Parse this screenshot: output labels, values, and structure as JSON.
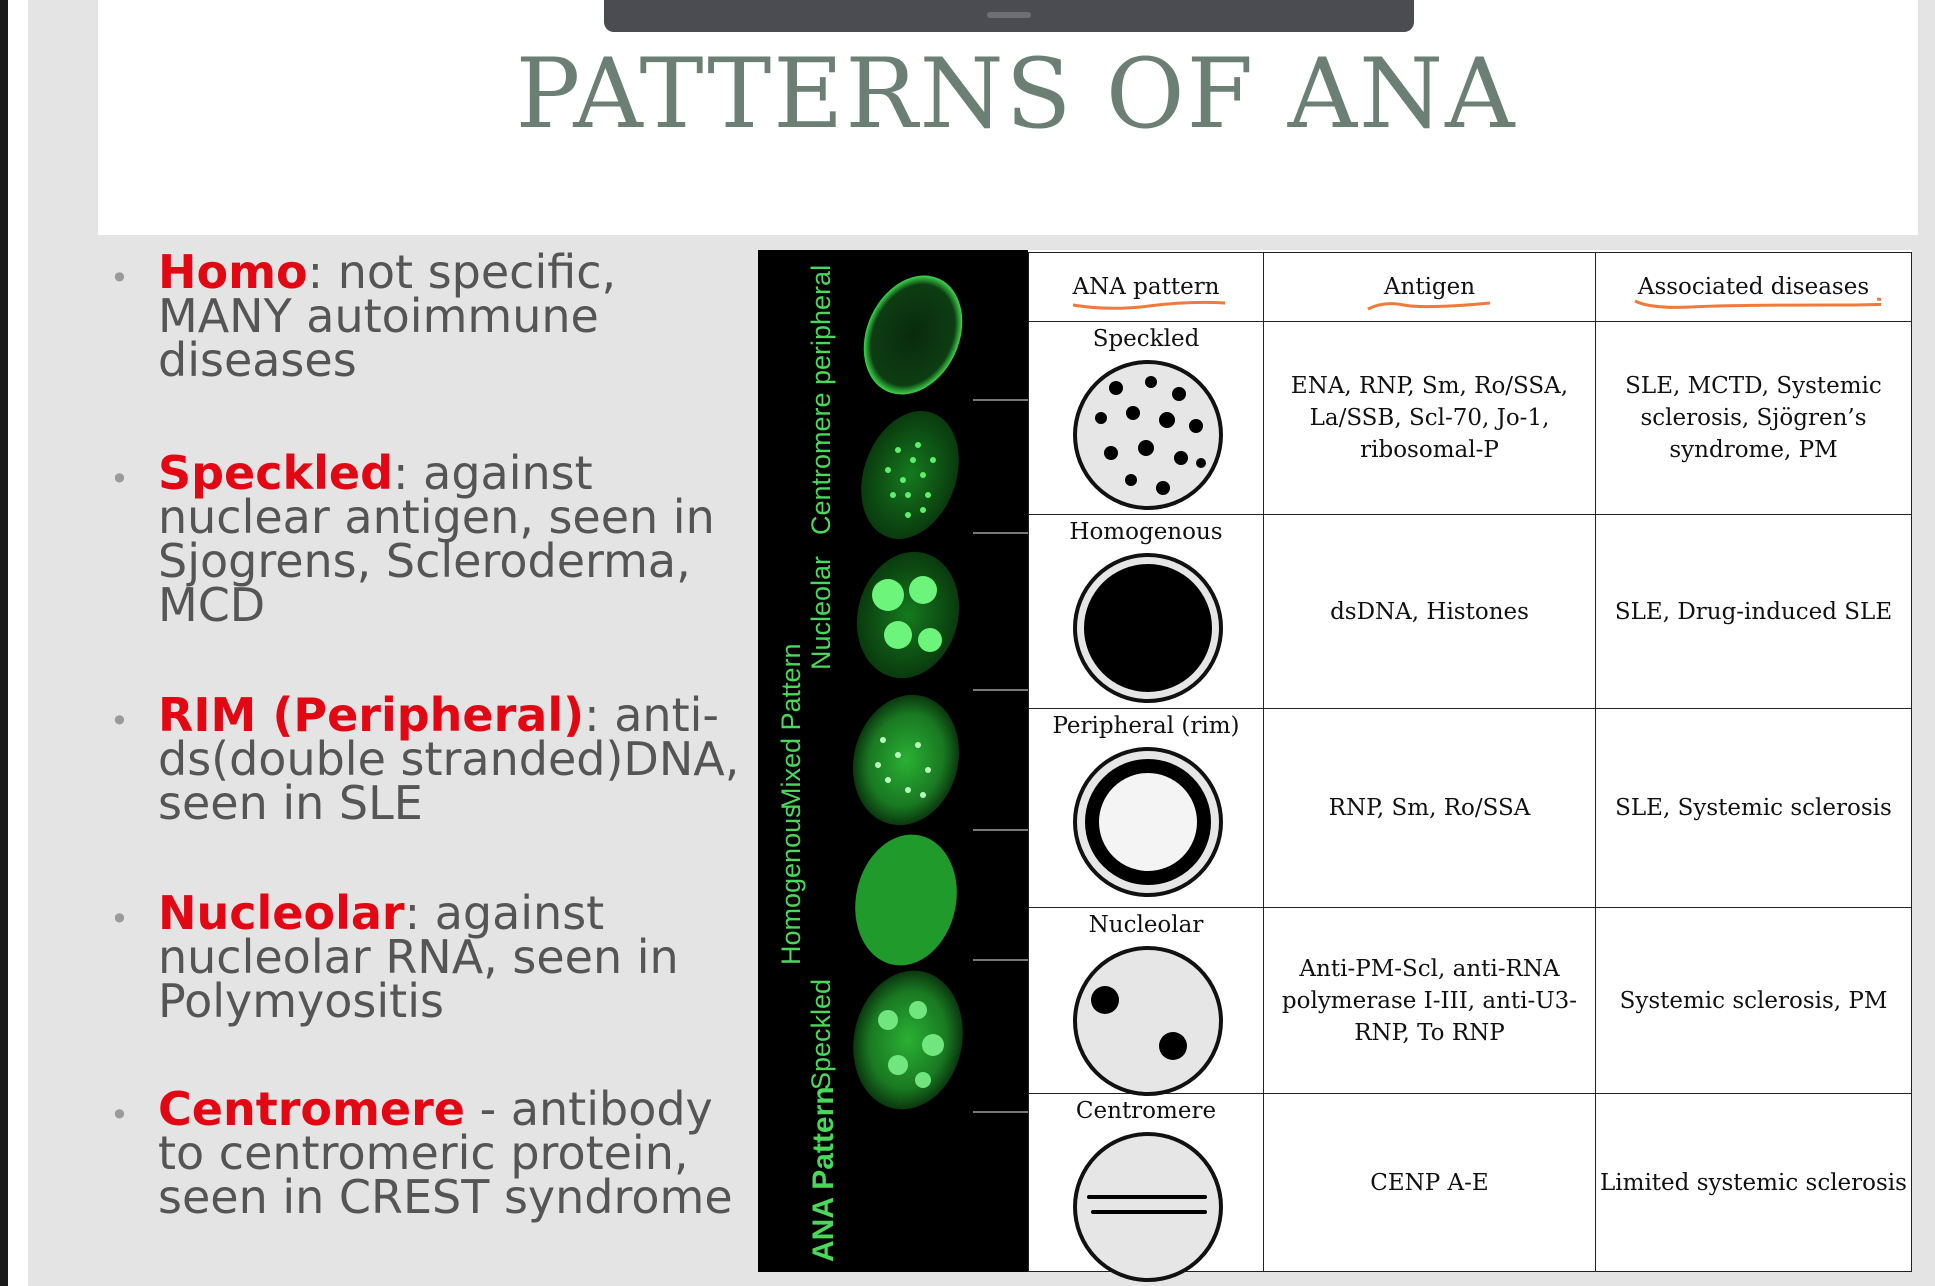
{
  "slide": {
    "title": "PATTERNS OF ANA"
  },
  "bullets": [
    {
      "term": "Homo",
      "text": ": not specific, MANY autoimmune diseases"
    },
    {
      "term": "Speckled",
      "text": ": against nuclear antigen, seen in Sjogrens, Scleroderma, MCD"
    },
    {
      "term": "RIM (Peripheral)",
      "text": ": anti-ds(double stranded)DNA, seen in SLE"
    },
    {
      "term": "Nucleolar",
      "text": ": against nucleolar RNA, seen in Polymyositis"
    },
    {
      "term": "Centromere",
      "text": " - antibody to centromeric protein, seen in CREST syndrome"
    }
  ],
  "photo_labels": {
    "title": "ANA Pattern",
    "cells": [
      "peripheral",
      "Centromere",
      "Nucleolar",
      "Mixed Pattern",
      "Homogenous",
      "Speckled"
    ]
  },
  "table": {
    "headers": [
      "ANA pattern",
      "Antigen",
      "Associated diseases"
    ],
    "rows": [
      {
        "pattern": "Speckled",
        "antigen": "ENA, RNP, Sm, Ro/SSA, La/SSB, Scl-70, Jo-1, ribosomal-P",
        "diseases": "SLE, MCTD, Systemic sclerosis, Sjögren’s syndrome, PM"
      },
      {
        "pattern": "Homogenous",
        "antigen": "dsDNA, Histones",
        "diseases": "SLE, Drug-induced SLE"
      },
      {
        "pattern": "Peripheral (rim)",
        "antigen": "RNP, Sm, Ro/SSA",
        "diseases": "SLE, Systemic sclerosis"
      },
      {
        "pattern": "Nucleolar",
        "antigen": "Anti-PM-Scl, anti-RNA polymerase I-III, anti-U3-RNP, To RNP",
        "diseases": "Systemic sclerosis, PM"
      },
      {
        "pattern": "Centromere",
        "antigen": "CENP A-E",
        "diseases": "Limited systemic sclerosis"
      }
    ]
  },
  "colors": {
    "title": "#6b7f75",
    "term": "#e30613",
    "annotation": "#f07a3a",
    "fluorescence": "#2fc43a"
  }
}
